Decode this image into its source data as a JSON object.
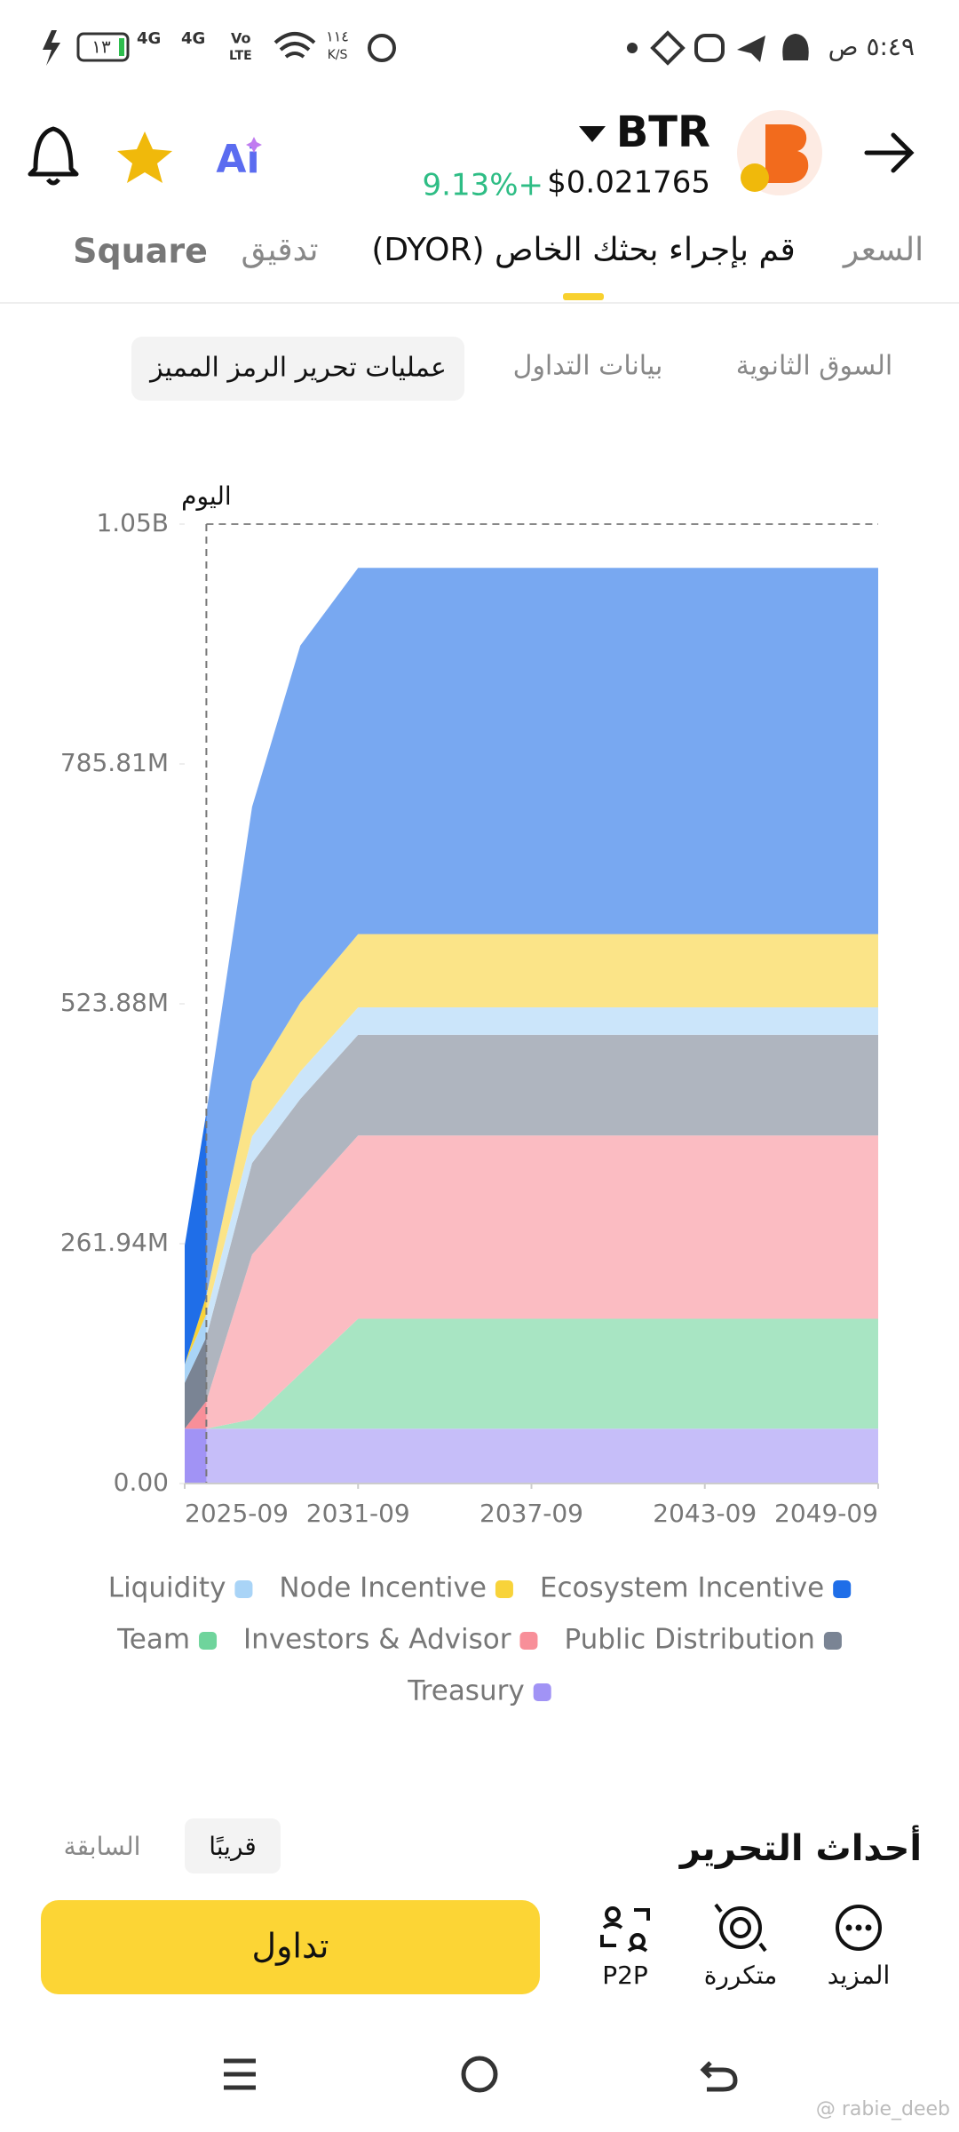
{
  "status_bar": {
    "time": "٥:٤٩ ص",
    "battery": "١٣",
    "network_1": "4G",
    "network_2": "4G",
    "volte_top": "Vo",
    "volte_bottom": "LTE",
    "speed": "١١٤",
    "speed_unit": "K/S"
  },
  "header": {
    "symbol": "BTR",
    "price": "$0.021765",
    "change": "9.13%+",
    "ai": "Ai"
  },
  "tabs": [
    "السعر",
    "قم بإجراء بحثك الخاص (DYOR)",
    "تدقيق",
    "Square"
  ],
  "sub_tabs": [
    "السوق الثانوية",
    "بيانات التداول",
    "عمليات تحرير الرمز المميز"
  ],
  "chart_data": {
    "type": "area",
    "stacked": true,
    "x": [
      "2025-09",
      "2026-06",
      "2028-01",
      "2029-09",
      "2031-09",
      "2049-09"
    ],
    "xlim": [
      "2025-09",
      "2049-09"
    ],
    "xticks": [
      "2025-09",
      "2031-09",
      "2037-09",
      "2043-09",
      "2049-09"
    ],
    "ylim": [
      0,
      1047760000
    ],
    "yticks": [
      {
        "value": 0,
        "label": "0.00"
      },
      {
        "value": 261940000,
        "label": "261.94M"
      },
      {
        "value": 523880000,
        "label": "523.88M"
      },
      {
        "value": 785810000,
        "label": "785.81M"
      },
      {
        "value": 1047760000,
        "label": "1.05B"
      }
    ],
    "annotation": {
      "x": "2026-06",
      "label": "اليوم"
    },
    "series": [
      {
        "name": "Liquidity",
        "color": "#a9d4f7",
        "values": [
          20000000,
          25000000,
          29000000,
          30000000,
          30000000,
          30000000
        ]
      },
      {
        "name": "Node Incentive",
        "color": "#f8d33a",
        "values": [
          0,
          20000000,
          60000000,
          75000000,
          80000000,
          80000000
        ]
      },
      {
        "name": "Ecosystem Incentive",
        "color": "#1f6ee8",
        "values": [
          130000000,
          200000000,
          300000000,
          390000000,
          400000000,
          400000000
        ]
      },
      {
        "name": "Team",
        "color": "#6fd49c",
        "values": [
          0,
          0,
          10000000,
          60000000,
          120000000,
          120000000
        ]
      },
      {
        "name": "Investors & Advisor",
        "color": "#f88f99",
        "values": [
          0,
          30000000,
          180000000,
          190000000,
          200000000,
          200000000
        ]
      },
      {
        "name": "Public Distribution",
        "color": "#7a8494",
        "values": [
          50000000,
          70000000,
          100000000,
          110000000,
          110000000,
          110000000
        ]
      },
      {
        "name": "Treasury",
        "color": "#a193f5",
        "values": [
          60000000,
          60000000,
          60000000,
          60000000,
          60000000,
          60000000
        ]
      }
    ]
  },
  "events": {
    "title": "أحداث التحرير",
    "tabs": [
      "قريبًا",
      "السابقة"
    ]
  },
  "bottom_bar": {
    "trade": "تداول",
    "actions": [
      "P2P",
      "متكررة",
      "المزيد"
    ]
  },
  "watermark": "@ rabie_deeb"
}
